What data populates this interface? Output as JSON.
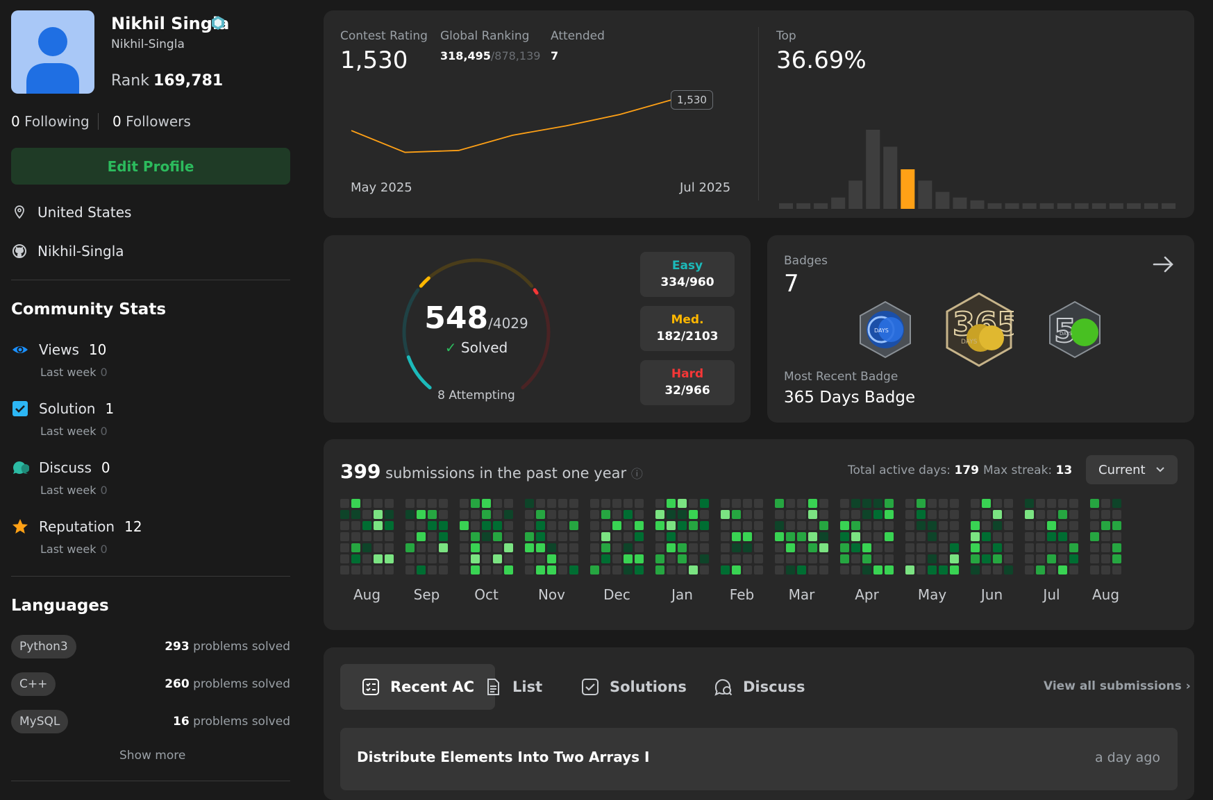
{
  "profile": {
    "name": "Nikhil Singla",
    "username": "Nikhil-Singla",
    "rank_label": "Rank",
    "rank_value": "169,781",
    "following_count": "0",
    "following_label": "Following",
    "followers_count": "0",
    "followers_label": "Followers",
    "edit_label": "Edit Profile",
    "location": "United States",
    "github": "Nikhil-Singla"
  },
  "community": {
    "title": "Community Stats",
    "last_week_label": "Last week",
    "items": [
      {
        "label": "Views",
        "value": "10",
        "last_week": "0",
        "icon": "eye-icon",
        "color": "#1a90ff"
      },
      {
        "label": "Solution",
        "value": "1",
        "last_week": "0",
        "icon": "check-square-icon",
        "color": "#2db7f5"
      },
      {
        "label": "Discuss",
        "value": "0",
        "last_week": "0",
        "icon": "chat-bubbles-icon",
        "color": "#2cbba4"
      },
      {
        "label": "Reputation",
        "value": "12",
        "last_week": "0",
        "icon": "star-icon",
        "color": "#ffa116"
      }
    ]
  },
  "languages": {
    "title": "Languages",
    "suffix": "problems solved",
    "items": [
      {
        "name": "Python3",
        "count": "293"
      },
      {
        "name": "C++",
        "count": "260"
      },
      {
        "name": "MySQL",
        "count": "16"
      }
    ],
    "show_more": "Show more"
  },
  "contest": {
    "rating_label": "Contest Rating",
    "rating": "1,530",
    "ranking_label": "Global Ranking",
    "ranking": "318,495",
    "ranking_total": "/878,139",
    "attended_label": "Attended",
    "attended": "7",
    "top_label": "Top",
    "top_value": "36.69%",
    "tooltip": "1,530",
    "x_start": "May 2025",
    "x_end": "Jul 2025"
  },
  "chart_data": [
    {
      "type": "line",
      "y": [
        1495,
        1472,
        1474,
        1490,
        1500,
        1512,
        1528
      ],
      "marker_value": 1530,
      "color": "#ffa116"
    },
    {
      "type": "bar",
      "values": [
        2,
        2,
        2,
        4,
        10,
        28,
        22,
        14,
        10,
        6,
        4,
        3,
        2,
        2,
        2,
        2,
        2,
        2,
        2,
        2,
        2,
        2,
        2
      ],
      "highlight_index": 7,
      "highlight_color": "#ffa116",
      "bar_color": "#3e3e3e"
    }
  ],
  "solved": {
    "count": "548",
    "total": "/4029",
    "solved_label": "Solved",
    "attempting": "8 Attempting",
    "easy_label": "Easy",
    "easy": "334/960",
    "med_label": "Med.",
    "med": "182/2103",
    "hard_label": "Hard",
    "hard": "32/966",
    "easy_fraction": 0.348,
    "med_fraction": 0.087,
    "hard_fraction": 0.033,
    "easy_color": "#1cbaba",
    "med_color": "#ffb700",
    "hard_color": "#f63737"
  },
  "badges": {
    "label": "Badges",
    "count": "7",
    "recent_label": "Most Recent Badge",
    "recent_name": "365 Days Badge",
    "items": [
      {
        "icon": "days-badge-blue-icon"
      },
      {
        "icon": "365-days-badge-icon"
      },
      {
        "icon": "50-days-badge-icon"
      }
    ]
  },
  "submissions": {
    "count": "399",
    "label": "submissions in the past one year",
    "active_days_label": "Total active days:",
    "active_days": "179",
    "max_streak_label": "Max streak:",
    "max_streak": "13",
    "selector": "Current",
    "months": [
      "Aug",
      "Sep",
      "Oct",
      "Nov",
      "Dec",
      "Jan",
      "Feb",
      "Mar",
      "Apr",
      "May",
      "Jun",
      "Jul",
      "Aug"
    ]
  },
  "tabs": {
    "items": [
      "Recent AC",
      "List",
      "Solutions",
      "Discuss"
    ],
    "view_all": "View all submissions",
    "recent_title": "Distribute Elements Into Two Arrays I",
    "recent_time": "a day ago"
  }
}
